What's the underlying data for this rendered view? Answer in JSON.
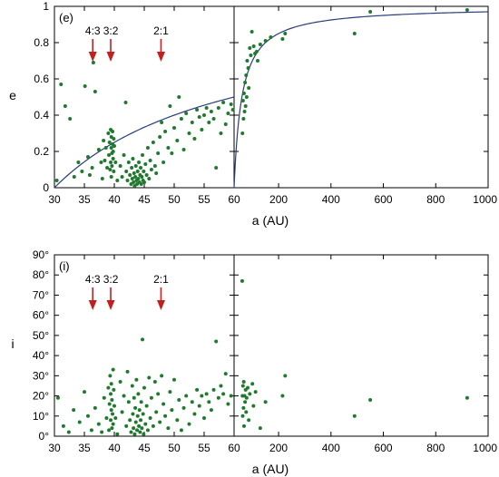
{
  "colors": {
    "points": "#1f7a2e",
    "curve": "#2a3d7c",
    "arrows": "#c41e1e",
    "frame": "#000000"
  },
  "chart_data": [
    {
      "type": "scatter",
      "panel_label": "(e)",
      "ylabel": "e",
      "xlabel": "a (AU)",
      "ylim": [
        0,
        1
      ],
      "y_ticks": [
        "0",
        "0.2",
        "0.4",
        "0.6",
        "0.8",
        "1"
      ],
      "left": {
        "xlim": [
          30,
          60
        ],
        "x_ticks": [
          "30",
          "35",
          "40",
          "45",
          "50",
          "55",
          "60"
        ]
      },
      "right": {
        "xlim": [
          30,
          1000
        ],
        "x_ticks": [
          "60",
          "200",
          "400",
          "600",
          "800",
          "1000"
        ]
      },
      "resonances": [
        {
          "label": "4:3",
          "a": 36.4
        },
        {
          "label": "3:2",
          "a": 39.4
        },
        {
          "label": "2:1",
          "a": 47.8
        }
      ],
      "curve_q": 30,
      "points": [
        [
          30.4,
          0.04
        ],
        [
          31.1,
          0.57
        ],
        [
          31.8,
          0.45
        ],
        [
          32.6,
          0.38
        ],
        [
          33.3,
          0.06
        ],
        [
          34.0,
          0.14
        ],
        [
          34.6,
          0.09
        ],
        [
          35.1,
          0.56
        ],
        [
          35.6,
          0.17
        ],
        [
          35.9,
          0.07
        ],
        [
          36.3,
          0.11
        ],
        [
          36.5,
          0.69
        ],
        [
          36.8,
          0.53
        ],
        [
          37.4,
          0.21
        ],
        [
          37.8,
          0.14
        ],
        [
          38.0,
          0.05
        ],
        [
          38.2,
          0.26
        ],
        [
          38.4,
          0.15
        ],
        [
          38.6,
          0.22
        ],
        [
          38.8,
          0.11
        ],
        [
          39.0,
          0.3
        ],
        [
          39.1,
          0.18
        ],
        [
          39.2,
          0.25
        ],
        [
          39.3,
          0.1
        ],
        [
          39.4,
          0.32
        ],
        [
          39.4,
          0.14
        ],
        [
          39.5,
          0.22
        ],
        [
          39.5,
          0.28
        ],
        [
          39.5,
          0.06
        ],
        [
          39.6,
          0.19
        ],
        [
          39.6,
          0.12
        ],
        [
          39.7,
          0.24
        ],
        [
          39.7,
          0.31
        ],
        [
          39.8,
          0.16
        ],
        [
          39.8,
          0.2
        ],
        [
          39.9,
          0.27
        ],
        [
          39.9,
          0.09
        ],
        [
          40.0,
          0.23
        ],
        [
          40.2,
          0.14
        ],
        [
          40.5,
          0.04
        ],
        [
          41.0,
          0.12
        ],
        [
          41.3,
          0.06
        ],
        [
          41.6,
          0.18
        ],
        [
          41.9,
          0.47
        ],
        [
          42.0,
          0.09
        ],
        [
          42.2,
          0.04
        ],
        [
          42.4,
          0.14
        ],
        [
          42.6,
          0.07
        ],
        [
          42.8,
          0.02
        ],
        [
          42.9,
          0.11
        ],
        [
          43.0,
          0.05
        ],
        [
          43.1,
          0.16
        ],
        [
          43.2,
          0.03
        ],
        [
          43.3,
          0.08
        ],
        [
          43.4,
          0.01
        ],
        [
          43.5,
          0.06
        ],
        [
          43.6,
          0.12
        ],
        [
          43.7,
          0.04
        ],
        [
          43.8,
          0.02
        ],
        [
          43.9,
          0.09
        ],
        [
          44.0,
          0.05
        ],
        [
          44.1,
          0.14
        ],
        [
          44.2,
          0.03
        ],
        [
          44.3,
          0.07
        ],
        [
          44.4,
          0.11
        ],
        [
          44.5,
          0.02
        ],
        [
          44.6,
          0.06
        ],
        [
          44.7,
          0.18
        ],
        [
          44.8,
          0.04
        ],
        [
          44.9,
          0.09
        ],
        [
          45.0,
          0.03
        ],
        [
          45.2,
          0.13
        ],
        [
          45.4,
          0.07
        ],
        [
          45.6,
          0.22
        ],
        [
          45.8,
          0.05
        ],
        [
          46.0,
          0.15
        ],
        [
          46.2,
          0.1
        ],
        [
          46.5,
          0.25
        ],
        [
          46.8,
          0.12
        ],
        [
          47.0,
          0.08
        ],
        [
          47.3,
          0.19
        ],
        [
          47.6,
          0.28
        ],
        [
          47.9,
          0.36
        ],
        [
          48.2,
          0.14
        ],
        [
          48.5,
          0.31
        ],
        [
          49.0,
          0.22
        ],
        [
          49.3,
          0.45
        ],
        [
          49.6,
          0.19
        ],
        [
          50.0,
          0.33
        ],
        [
          50.5,
          0.26
        ],
        [
          50.8,
          0.5
        ],
        [
          51.2,
          0.38
        ],
        [
          51.6,
          0.21
        ],
        [
          52.0,
          0.41
        ],
        [
          52.5,
          0.3
        ],
        [
          53.0,
          0.36
        ],
        [
          53.4,
          0.27
        ],
        [
          53.8,
          0.43
        ],
        [
          54.2,
          0.39
        ],
        [
          54.6,
          0.32
        ],
        [
          55.0,
          0.4
        ],
        [
          55.4,
          0.44
        ],
        [
          55.8,
          0.36
        ],
        [
          56.2,
          0.42
        ],
        [
          56.6,
          0.38
        ],
        [
          57.0,
          0.11
        ],
        [
          57.4,
          0.44
        ],
        [
          57.8,
          0.3
        ],
        [
          58.2,
          0.47
        ],
        [
          58.6,
          0.35
        ],
        [
          59.0,
          0.41
        ],
        [
          59.5,
          0.46
        ],
        [
          59.8,
          0.43
        ],
        [
          62,
          0.3
        ],
        [
          64,
          0.48
        ],
        [
          66,
          0.38
        ],
        [
          68,
          0.52
        ],
        [
          70,
          0.42
        ],
        [
          72,
          0.58
        ],
        [
          74,
          0.45
        ],
        [
          76,
          0.62
        ],
        [
          78,
          0.5
        ],
        [
          80,
          0.7
        ],
        [
          84,
          0.66
        ],
        [
          86,
          0.55
        ],
        [
          90,
          0.77
        ],
        [
          94,
          0.73
        ],
        [
          98,
          0.86
        ],
        [
          105,
          0.78
        ],
        [
          110,
          0.74
        ],
        [
          116,
          0.75
        ],
        [
          120,
          0.7
        ],
        [
          130,
          0.79
        ],
        [
          150,
          0.81
        ],
        [
          170,
          0.83
        ],
        [
          215,
          0.82
        ],
        [
          225,
          0.85
        ],
        [
          490,
          0.85
        ],
        [
          550,
          0.97
        ],
        [
          920,
          0.98
        ]
      ]
    },
    {
      "type": "scatter",
      "panel_label": "(i)",
      "ylabel": "i",
      "xlabel": "a (AU)",
      "ylim": [
        0,
        90
      ],
      "y_ticks": [
        "0°",
        "10°",
        "20°",
        "30°",
        "40°",
        "50°",
        "60°",
        "70°",
        "80°",
        "90°"
      ],
      "left": {
        "xlim": [
          30,
          60
        ],
        "x_ticks": [
          "30",
          "35",
          "40",
          "45",
          "50",
          "55",
          "60"
        ]
      },
      "right": {
        "xlim": [
          30,
          1000
        ],
        "x_ticks": [
          "60",
          "200",
          "400",
          "600",
          "800",
          "1000"
        ]
      },
      "resonances": [
        {
          "label": "4:3",
          "a": 36.4
        },
        {
          "label": "3:2",
          "a": 39.4
        },
        {
          "label": "2:1",
          "a": 47.8
        }
      ],
      "points": [
        [
          30.6,
          19
        ],
        [
          31.5,
          5
        ],
        [
          32.4,
          2
        ],
        [
          33.2,
          13
        ],
        [
          34.2,
          7
        ],
        [
          35.0,
          22
        ],
        [
          35.6,
          10
        ],
        [
          36.2,
          3
        ],
        [
          36.8,
          14
        ],
        [
          37.4,
          6
        ],
        [
          37.9,
          2
        ],
        [
          38.3,
          19
        ],
        [
          38.7,
          9
        ],
        [
          39.0,
          24
        ],
        [
          39.1,
          3
        ],
        [
          39.2,
          16
        ],
        [
          39.3,
          30
        ],
        [
          39.4,
          8
        ],
        [
          39.4,
          21
        ],
        [
          39.5,
          13
        ],
        [
          39.5,
          26
        ],
        [
          39.6,
          4
        ],
        [
          39.6,
          18
        ],
        [
          39.7,
          11
        ],
        [
          39.8,
          33
        ],
        [
          39.8,
          6
        ],
        [
          39.9,
          23
        ],
        [
          40.0,
          15
        ],
        [
          40.2,
          9
        ],
        [
          40.5,
          1
        ],
        [
          41.0,
          27
        ],
        [
          41.3,
          12
        ],
        [
          41.6,
          20
        ],
        [
          42.0,
          5
        ],
        [
          42.2,
          32
        ],
        [
          42.4,
          17
        ],
        [
          42.6,
          8
        ],
        [
          42.8,
          2
        ],
        [
          43.0,
          25
        ],
        [
          43.1,
          11
        ],
        [
          43.2,
          4
        ],
        [
          43.3,
          19
        ],
        [
          43.4,
          1
        ],
        [
          43.5,
          14
        ],
        [
          43.6,
          7
        ],
        [
          43.7,
          28
        ],
        [
          43.8,
          3
        ],
        [
          43.9,
          10
        ],
        [
          44.0,
          21
        ],
        [
          44.1,
          5
        ],
        [
          44.2,
          13
        ],
        [
          44.3,
          2
        ],
        [
          44.4,
          8
        ],
        [
          44.5,
          17
        ],
        [
          44.6,
          4
        ],
        [
          44.7,
          48
        ],
        [
          44.8,
          11
        ],
        [
          44.9,
          1
        ],
        [
          45.0,
          24
        ],
        [
          45.2,
          6
        ],
        [
          45.4,
          15
        ],
        [
          45.6,
          3
        ],
        [
          45.8,
          29
        ],
        [
          46.0,
          9
        ],
        [
          46.2,
          19
        ],
        [
          46.5,
          5
        ],
        [
          46.8,
          27
        ],
        [
          47.0,
          12
        ],
        [
          47.3,
          21
        ],
        [
          47.6,
          7
        ],
        [
          47.9,
          30
        ],
        [
          48.2,
          16
        ],
        [
          48.5,
          10
        ],
        [
          49.0,
          4
        ],
        [
          49.3,
          22
        ],
        [
          49.6,
          13
        ],
        [
          50.0,
          28
        ],
        [
          50.5,
          8
        ],
        [
          50.8,
          18
        ],
        [
          51.2,
          3
        ],
        [
          51.6,
          14
        ],
        [
          52.0,
          20
        ],
        [
          52.5,
          6
        ],
        [
          53.0,
          17
        ],
        [
          53.4,
          11
        ],
        [
          53.8,
          23
        ],
        [
          54.2,
          15
        ],
        [
          54.6,
          20
        ],
        [
          55.0,
          9
        ],
        [
          55.4,
          21
        ],
        [
          55.8,
          17
        ],
        [
          56.2,
          13
        ],
        [
          56.6,
          23
        ],
        [
          57.0,
          47
        ],
        [
          57.4,
          19
        ],
        [
          57.8,
          25
        ],
        [
          58.2,
          21
        ],
        [
          58.6,
          31
        ],
        [
          59.0,
          16
        ],
        [
          59.5,
          20
        ],
        [
          61,
          77
        ],
        [
          62,
          20
        ],
        [
          63,
          10
        ],
        [
          64,
          25
        ],
        [
          66,
          14
        ],
        [
          67,
          27
        ],
        [
          68,
          5
        ],
        [
          70,
          20
        ],
        [
          72,
          17
        ],
        [
          74,
          23
        ],
        [
          76,
          12
        ],
        [
          78,
          19
        ],
        [
          82,
          24
        ],
        [
          86,
          8
        ],
        [
          90,
          21
        ],
        [
          100,
          26
        ],
        [
          104,
          15
        ],
        [
          112,
          22
        ],
        [
          130,
          4
        ],
        [
          150,
          17
        ],
        [
          215,
          20
        ],
        [
          225,
          30
        ],
        [
          490,
          10
        ],
        [
          550,
          18
        ],
        [
          920,
          19
        ]
      ]
    }
  ]
}
